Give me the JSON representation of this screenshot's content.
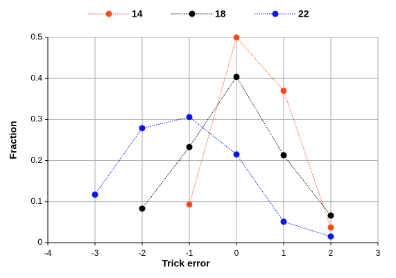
{
  "chart_data": {
    "type": "line",
    "x_label": "Trick error",
    "y_label": "Fraction",
    "xlim": [
      -4,
      3
    ],
    "xticks": [
      -4,
      -3,
      -2,
      -1,
      0,
      1,
      2,
      3
    ],
    "ylim": [
      0,
      0.5
    ],
    "yticks": [
      0,
      0.1,
      0.2,
      0.3,
      0.4,
      0.5
    ],
    "grid": true,
    "legend": "top",
    "series": [
      {
        "name": "14",
        "color": "#ff4a1c",
        "x": [
          -1,
          0,
          1,
          2
        ],
        "values": [
          0.093,
          0.5,
          0.37,
          0.037
        ]
      },
      {
        "name": "18",
        "color": "#000000",
        "x": [
          -2,
          -1,
          0,
          1,
          2
        ],
        "values": [
          0.083,
          0.233,
          0.404,
          0.213,
          0.066
        ]
      },
      {
        "name": "22",
        "color": "#0a14f0",
        "x": [
          -3,
          -2,
          -1,
          0,
          1,
          2
        ],
        "values": [
          0.117,
          0.279,
          0.306,
          0.215,
          0.051,
          0.015
        ]
      }
    ]
  }
}
